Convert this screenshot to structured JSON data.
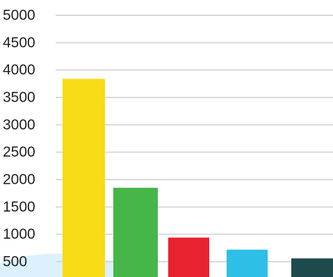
{
  "chart_data": {
    "type": "bar",
    "categories": [
      "",
      "",
      "",
      "",
      ""
    ],
    "values": [
      3840,
      1850,
      940,
      720,
      560
    ],
    "colors": [
      "#f7dc16",
      "#46b649",
      "#e8222e",
      "#2ebfe6",
      "#1f4a4d"
    ],
    "title": "",
    "xlabel": "",
    "ylabel": "",
    "ylim": [
      0,
      5000
    ],
    "yticks": [
      "500",
      "1000",
      "1500",
      "2000",
      "2500",
      "3000",
      "3500",
      "4000",
      "4500",
      "5000"
    ],
    "grid": true,
    "legend": "none"
  }
}
